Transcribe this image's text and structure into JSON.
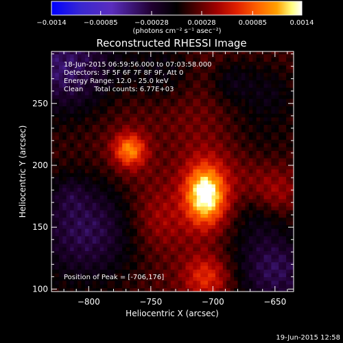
{
  "chart_data": {
    "type": "heatmap",
    "title": "Reconstructed RHESSI Image",
    "xlabel": "Heliocentric X (arcsec)",
    "ylabel": "Heliocentric Y (arcsec)",
    "xlim": [
      -830,
      -635
    ],
    "ylim": [
      98,
      292
    ],
    "xticks": [
      -800,
      -750,
      -700,
      -650
    ],
    "yticks": [
      100,
      150,
      200,
      250
    ],
    "xtick_labels": [
      "−800",
      "−750",
      "−700",
      "−650"
    ],
    "ytick_labels": [
      "100",
      "150",
      "200",
      "250"
    ],
    "colorbar": {
      "range": [
        -0.0014,
        0.0014
      ],
      "ticks": [
        -0.0014,
        -0.00085,
        -0.00028,
        0.00028,
        0.00085,
        0.0014
      ],
      "tick_labels": [
        "−0.0014",
        "−0.00085",
        "−0.00028",
        "0.00028",
        "0.00085",
        "0.0014"
      ],
      "units_label": "(photons cm⁻² s⁻¹ asec⁻²)"
    },
    "sources": [
      {
        "x": -706,
        "y": 176,
        "relative_intensity": 1.0
      },
      {
        "x": -767,
        "y": 213,
        "relative_intensity": 0.62
      },
      {
        "x": -706,
        "y": 110,
        "relative_intensity": 0.35
      }
    ],
    "annotations": [
      "18-Jun-2015 06:59:56.000 to 07:03:58.000",
      "Detectors: 3F 5F 6F 7F 8F 9F, Att 0",
      "Energy Range: 12.0 - 25.0 keV",
      "Clean     Total counts: 6.77E+03"
    ],
    "peak_label": "Position of Peak = [-706,176]",
    "timestamp": "19-Jun-2015 12:58",
    "colors": {
      "background": "#000000",
      "colormap": [
        "#0000ff",
        "#5a2dbe",
        "#200030",
        "#000000",
        "#500000",
        "#a00000",
        "#e02000",
        "#ff6000",
        "#ffa000",
        "#ffff80",
        "#ffffff"
      ]
    }
  }
}
